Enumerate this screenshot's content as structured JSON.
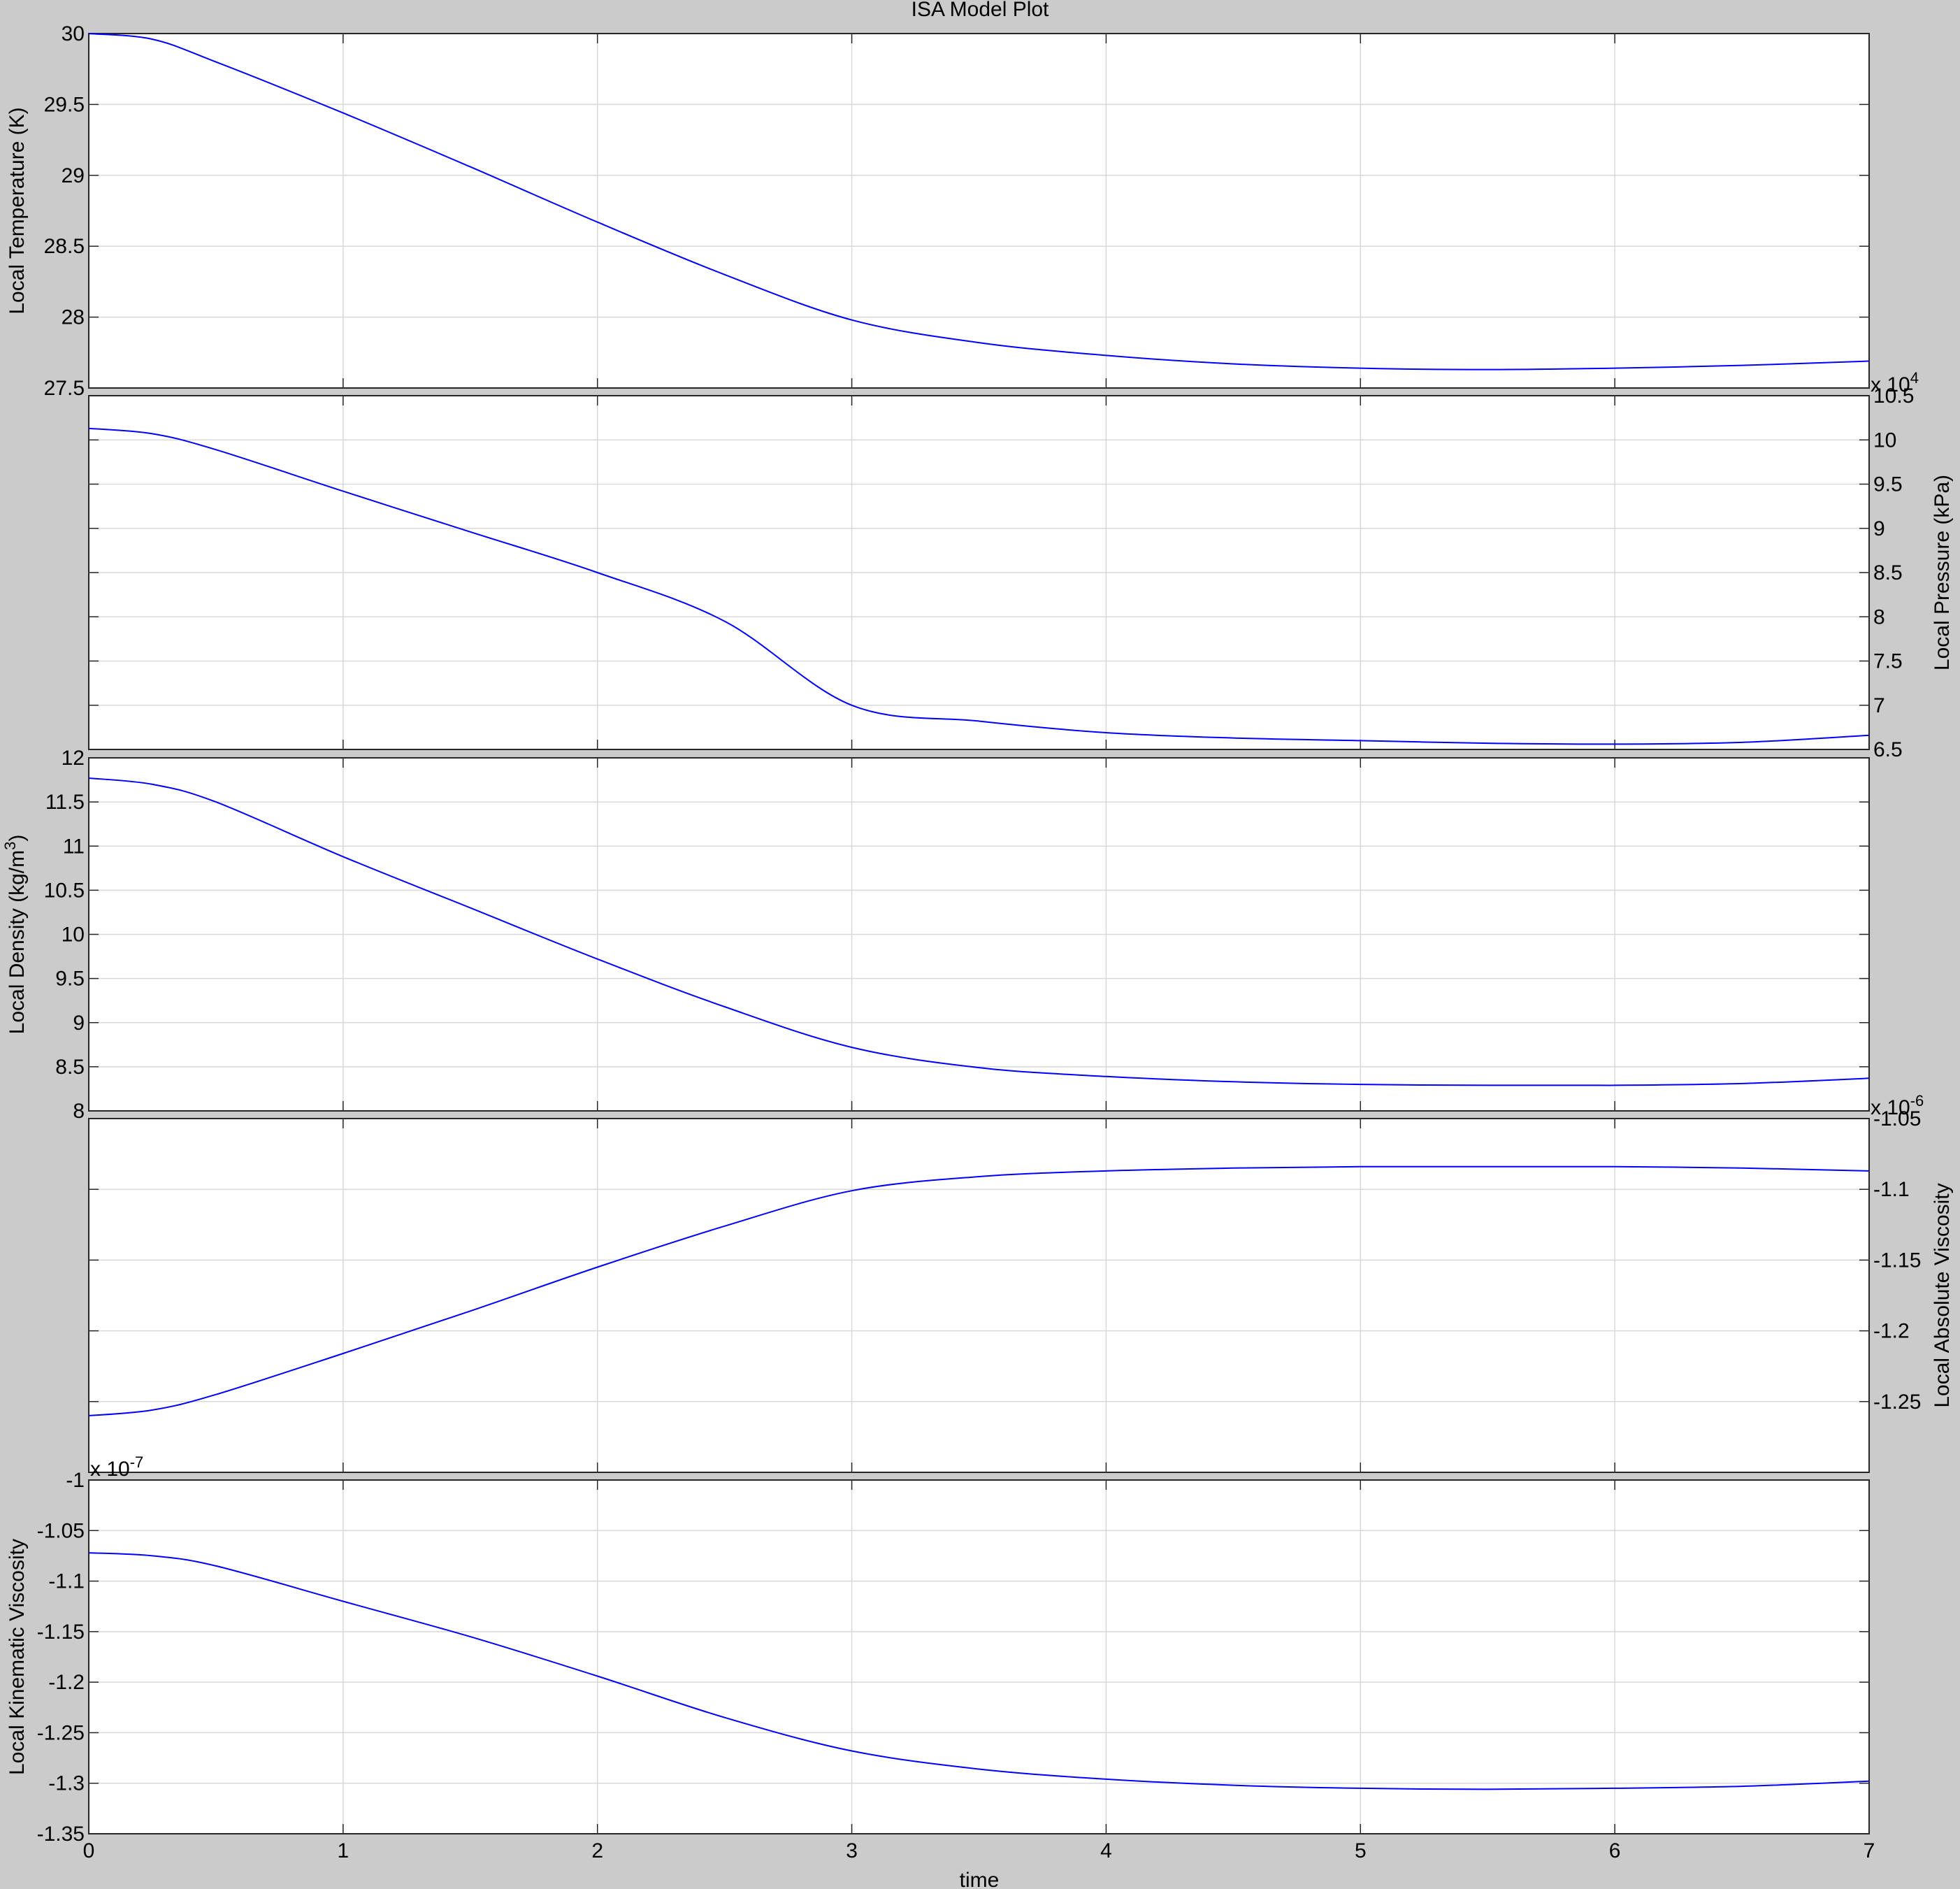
{
  "figure": {
    "title": "ISA Model Plot",
    "xlabel": "time",
    "colors": {
      "background": "#cbcbcb",
      "axes": "#ffffff",
      "series": "#0000ff",
      "grid": "#d9d9d9"
    }
  },
  "chart_data": [
    {
      "type": "line",
      "title": "ISA Model Plot",
      "ylabel": "Local Temperature (K)",
      "yaxis_side": "left",
      "grid": true,
      "xlim": [
        0,
        7
      ],
      "ylim": [
        27.5,
        30
      ],
      "xticks": [
        "0",
        "1",
        "2",
        "3",
        "4",
        "5",
        "6",
        "7"
      ],
      "yticks": [
        "27.5",
        "28",
        "28.5",
        "29",
        "29.5",
        "30"
      ],
      "exponent": "",
      "x": [
        0,
        0.25,
        0.5,
        1,
        1.5,
        2,
        2.5,
        3,
        3.5,
        4,
        4.5,
        5,
        5.5,
        6,
        6.5,
        7
      ],
      "values": [
        30.0,
        29.96,
        29.8,
        29.44,
        29.06,
        28.67,
        28.3,
        27.98,
        27.82,
        27.73,
        27.67,
        27.64,
        27.63,
        27.64,
        27.66,
        27.69
      ]
    },
    {
      "type": "line",
      "ylabel": "Local Pressure (kPa)",
      "yaxis_side": "right",
      "grid": true,
      "xlim": [
        0,
        7
      ],
      "ylim": [
        6.5,
        10.5
      ],
      "yticks": [
        "6.5",
        "7",
        "7.5",
        "8",
        "8.5",
        "9",
        "9.5",
        "10",
        "10.5"
      ],
      "exponent": "x 10^4",
      "x": [
        0,
        0.25,
        0.5,
        1,
        1.5,
        2,
        2.5,
        3,
        3.5,
        4,
        4.5,
        5,
        5.5,
        6,
        6.5,
        7
      ],
      "values": [
        10.13,
        10.07,
        9.89,
        9.42,
        8.96,
        8.5,
        7.95,
        7.0,
        6.82,
        6.69,
        6.63,
        6.6,
        6.57,
        6.56,
        6.58,
        6.66
      ]
    },
    {
      "type": "line",
      "ylabel": "Local Density (kg/m^3)",
      "yaxis_side": "left",
      "grid": true,
      "xlim": [
        0,
        7
      ],
      "ylim": [
        8,
        12
      ],
      "yticks": [
        "8",
        "8.5",
        "9",
        "9.5",
        "10",
        "10.5",
        "11",
        "11.5",
        "12"
      ],
      "exponent": "",
      "x": [
        0,
        0.25,
        0.5,
        1,
        1.5,
        2,
        2.5,
        3,
        3.5,
        4,
        4.5,
        5,
        5.5,
        6,
        6.5,
        7
      ],
      "values": [
        11.77,
        11.7,
        11.5,
        10.88,
        10.3,
        9.72,
        9.18,
        8.72,
        8.49,
        8.39,
        8.33,
        8.3,
        8.29,
        8.29,
        8.31,
        8.37
      ]
    },
    {
      "type": "line",
      "ylabel": "Local Absolute Viscosity",
      "yaxis_side": "right",
      "grid": true,
      "xlim": [
        0,
        7
      ],
      "ylim": [
        -1.3,
        -1.05
      ],
      "yticks": [
        "-1.25",
        "-1.2",
        "-1.15",
        "-1.1",
        "-1.05"
      ],
      "exponent": "x 10^-6",
      "x": [
        0,
        0.25,
        0.5,
        1,
        1.5,
        2,
        2.5,
        3,
        3.5,
        4,
        4.5,
        5,
        5.5,
        6,
        6.5,
        7
      ],
      "values": [
        -1.26,
        -1.256,
        -1.245,
        -1.216,
        -1.186,
        -1.155,
        -1.126,
        -1.101,
        -1.091,
        -1.087,
        -1.085,
        -1.084,
        -1.084,
        -1.084,
        -1.085,
        -1.087
      ]
    },
    {
      "type": "line",
      "ylabel": "Local Kinematic Viscosity",
      "yaxis_side": "left",
      "grid": true,
      "xlim": [
        0,
        7
      ],
      "ylim": [
        -1.35,
        -1
      ],
      "yticks": [
        "-1.35",
        "-1.3",
        "-1.25",
        "-1.2",
        "-1.15",
        "-1.1",
        "-1.05",
        "-1"
      ],
      "exponent": "x 10^-7",
      "x": [
        0,
        0.25,
        0.5,
        1,
        1.5,
        2,
        2.5,
        3,
        3.5,
        4,
        4.5,
        5,
        5.5,
        6,
        6.5,
        7
      ],
      "values": [
        -1.072,
        -1.075,
        -1.085,
        -1.12,
        -1.155,
        -1.194,
        -1.235,
        -1.268,
        -1.286,
        -1.296,
        -1.302,
        -1.305,
        -1.306,
        -1.305,
        -1.303,
        -1.298
      ]
    }
  ]
}
